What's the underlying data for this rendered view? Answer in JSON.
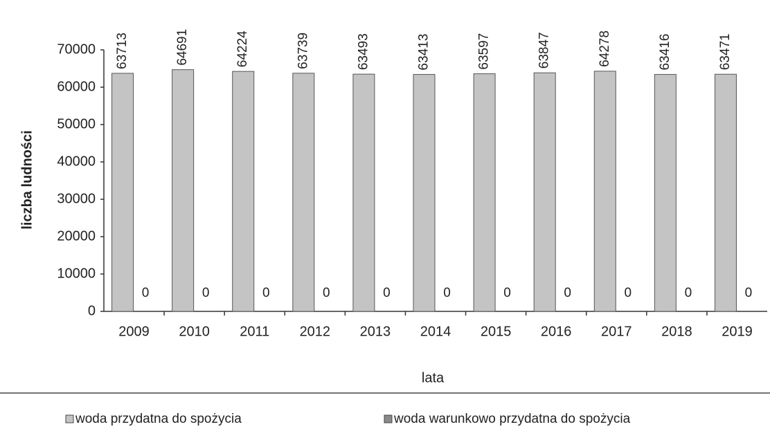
{
  "chart_data": {
    "type": "bar",
    "categories": [
      "2009",
      "2010",
      "2011",
      "2012",
      "2013",
      "2014",
      "2015",
      "2016",
      "2017",
      "2018",
      "2019"
    ],
    "series": [
      {
        "name": "woda przydatna do spożycia",
        "color": "#c4c4c4",
        "values": [
          63713,
          64691,
          64224,
          63739,
          63493,
          63413,
          63597,
          63847,
          64278,
          63416,
          63471
        ]
      },
      {
        "name": "woda warunkowo przydatna do spożycia",
        "color": "#8a8a8a",
        "values": [
          0,
          0,
          0,
          0,
          0,
          0,
          0,
          0,
          0,
          0,
          0
        ]
      }
    ],
    "ylabel": "liczba ludności",
    "xlabel": "lata",
    "ylim": [
      0,
      70000
    ],
    "yticks": [
      0,
      10000,
      20000,
      30000,
      40000,
      50000,
      60000,
      70000
    ],
    "grid": false,
    "legend": "bottom"
  }
}
